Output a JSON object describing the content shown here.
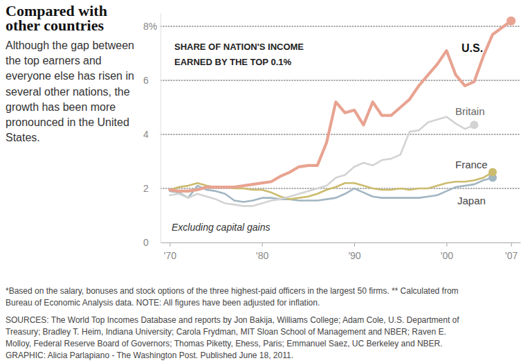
{
  "chart_data": {
    "type": "line",
    "title": "Compared with other countries",
    "subtitle": [
      "Although the gap between",
      "the top earners and",
      "everyone else has risen in",
      "several other nations, the",
      "growth has been more",
      "pronounced in the United",
      "States."
    ],
    "annotations": [
      "SHARE OF NATION'S INCOME",
      "EARNED BY THE TOP 0.1%",
      "Excluding capital gains"
    ],
    "notes": [
      "*Based on the salary, bonuses and stock options of the three highest-paid officers in the largest 50 firms. ** Calculated from",
      "Bureau of Economic Analysis data. NOTE: All figures have been adjusted for inflation.",
      "SOURCES: The World Top Incomes Database and reports by Jon Bakija, Williams College; Adam Cole, U.S. Department of",
      "Treasury; Bradley T. Heim, Indiana University; Carola Frydman, MIT Sloan School of Management and NBER; Raven E.",
      "Molloy, Federal Reserve Board of Governors; Thomas Piketty, Ehess, Paris; Emmanuel Saez, UC Berkeley and NBER.",
      "GRAPHIC: Alicia Parlapiano - The Washington Post. Published June 18, 2011."
    ],
    "x": [
      1970,
      1971,
      1972,
      1973,
      1974,
      1975,
      1976,
      1977,
      1978,
      1979,
      1980,
      1981,
      1982,
      1983,
      1984,
      1985,
      1986,
      1987,
      1988,
      1989,
      1990,
      1991,
      1992,
      1993,
      1994,
      1995,
      1996,
      1997,
      1998,
      1999,
      2000,
      2001,
      2002,
      2003,
      2004,
      2005,
      2006,
      2007
    ],
    "xlim": [
      1969,
      2008
    ],
    "xticks": [
      {
        "value": 1970,
        "label": "'70"
      },
      {
        "value": 1980,
        "label": "'80"
      },
      {
        "value": 1990,
        "label": "'90"
      },
      {
        "value": 2000,
        "label": "'00"
      },
      {
        "value": 2007,
        "label": "'07"
      }
    ],
    "ylim": [
      0,
      8.5
    ],
    "yticks": [
      0,
      2,
      4,
      6,
      {
        "value": 8,
        "label": "8%"
      }
    ],
    "grid": true,
    "series": [
      {
        "name": "U.S.",
        "color": "#e8a391",
        "values": [
          1.95,
          1.9,
          1.9,
          1.95,
          2.05,
          2.05,
          2.05,
          2.05,
          2.1,
          2.15,
          2.2,
          2.25,
          2.45,
          2.6,
          2.8,
          2.85,
          2.85,
          3.7,
          5.2,
          4.8,
          4.9,
          4.35,
          5.2,
          4.7,
          4.7,
          5.0,
          5.3,
          5.8,
          6.2,
          6.6,
          7.1,
          6.2,
          5.8,
          5.95,
          6.9,
          7.7,
          7.95,
          8.2
        ]
      },
      {
        "name": "Britain",
        "color": "#d3d3d3",
        "values": [
          1.75,
          1.8,
          1.65,
          1.8,
          1.7,
          1.6,
          1.45,
          1.4,
          1.35,
          1.35,
          1.45,
          1.55,
          1.6,
          1.7,
          1.8,
          1.9,
          2.0,
          2.1,
          2.4,
          2.5,
          2.8,
          2.95,
          2.85,
          3.05,
          3.1,
          3.25,
          4.1,
          4.15,
          4.45,
          4.55,
          4.65,
          4.4,
          4.2,
          4.35,
          null,
          null,
          null,
          null
        ]
      },
      {
        "name": "France",
        "color": "#cbbb6c",
        "values": [
          1.95,
          2.05,
          2.1,
          2.2,
          2.1,
          2.05,
          2.05,
          2.0,
          2.0,
          1.95,
          1.95,
          1.85,
          1.7,
          1.6,
          1.65,
          1.7,
          1.8,
          1.95,
          2.05,
          2.2,
          2.2,
          2.1,
          2.0,
          1.95,
          1.95,
          2.0,
          1.95,
          2.0,
          2.0,
          2.1,
          2.2,
          2.25,
          2.25,
          2.3,
          2.4,
          2.6,
          null,
          null
        ]
      },
      {
        "name": "Japan",
        "color": "#a2b6c2",
        "values": [
          1.9,
          1.85,
          1.65,
          2.1,
          1.95,
          1.9,
          1.8,
          1.55,
          1.5,
          1.55,
          1.65,
          1.65,
          1.6,
          1.6,
          1.55,
          1.55,
          1.55,
          1.6,
          1.65,
          1.8,
          2.0,
          1.85,
          1.7,
          1.65,
          1.65,
          1.65,
          1.65,
          1.65,
          1.7,
          1.75,
          1.9,
          2.05,
          2.1,
          2.15,
          2.3,
          2.4,
          null,
          null
        ]
      }
    ]
  }
}
